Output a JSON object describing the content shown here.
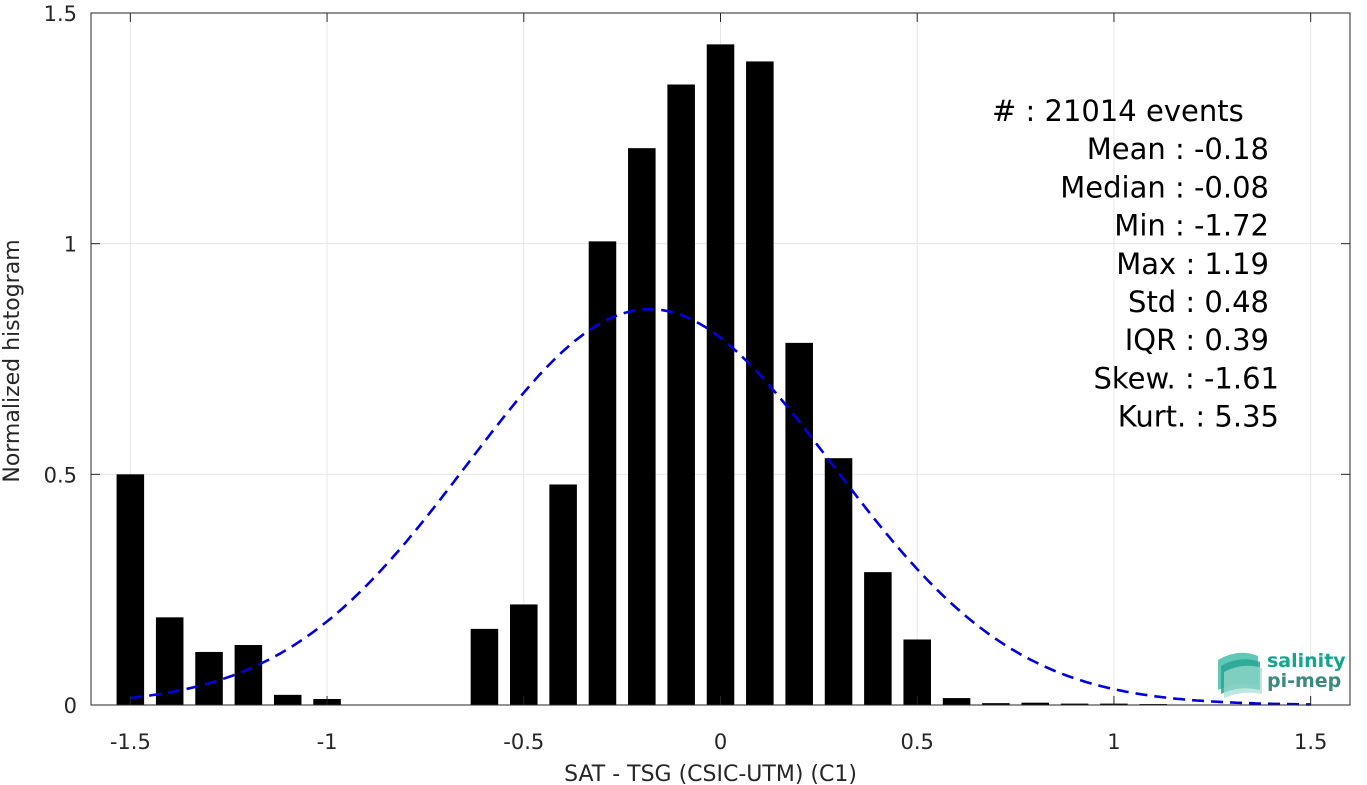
{
  "chart_data": {
    "type": "bar",
    "xlabel": "SAT - TSG (CSIC-UTM) (C1)",
    "ylabel": "Normalized histogram",
    "xlim": [
      -1.6,
      1.6
    ],
    "ylim": [
      0,
      1.5
    ],
    "grid": true,
    "xticks": [
      -1.5,
      -1,
      -0.5,
      0,
      0.5,
      1,
      1.5
    ],
    "xtick_labels": [
      "-1.5",
      "-1",
      "-0.5",
      "0",
      "0.5",
      "1",
      "1.5"
    ],
    "yticks": [
      0,
      0.5,
      1,
      1.5
    ],
    "ytick_labels": [
      "0",
      "0.5",
      "1",
      "1.5"
    ],
    "bar_width": 0.07,
    "bars": {
      "x": [
        -1.5,
        -1.4,
        -1.3,
        -1.2,
        -1.1,
        -1.0,
        -0.9,
        -0.8,
        -0.7,
        -0.6,
        -0.5,
        -0.4,
        -0.3,
        -0.2,
        -0.1,
        0.0,
        0.1,
        0.2,
        0.3,
        0.4,
        0.5,
        0.6,
        0.7,
        0.8,
        0.9,
        1.0,
        1.1,
        1.2,
        1.3,
        1.4,
        1.5
      ],
      "values": [
        0.5,
        0.19,
        0.115,
        0.13,
        0.022,
        0.013,
        0.001,
        0.001,
        0.001,
        0.165,
        0.218,
        0.478,
        1.005,
        1.207,
        1.345,
        1.432,
        1.395,
        0.785,
        0.535,
        0.288,
        0.142,
        0.015,
        0.004,
        0.005,
        0.003,
        0.003,
        0.002,
        0.001,
        0.001,
        0.001,
        0.001
      ],
      "color": "#000000"
    },
    "fit_curve": {
      "style": "dashed",
      "color": "#0000dd",
      "mean": -0.18,
      "std": 0.465,
      "x_start": -1.5,
      "x_end": 1.5
    },
    "stats": [
      {
        "label": "#  ",
        "value": "21014 events"
      },
      {
        "label": "Mean",
        "value": "-0.18"
      },
      {
        "label": "Median",
        "value": "-0.08"
      },
      {
        "label": "Min",
        "value": "-1.72"
      },
      {
        "label": "Max",
        "value": "1.19"
      },
      {
        "label": "Std",
        "value": "0.48"
      },
      {
        "label": "IQR",
        "value": "0.39"
      },
      {
        "label": "Skew.",
        "value": "-1.61"
      },
      {
        "label": "Kurt.",
        "value": "5.35"
      }
    ],
    "logo": {
      "line1": "salinity",
      "line2": "pi-mep",
      "color1": "#15a58f",
      "color2": "#3a8a80"
    }
  }
}
